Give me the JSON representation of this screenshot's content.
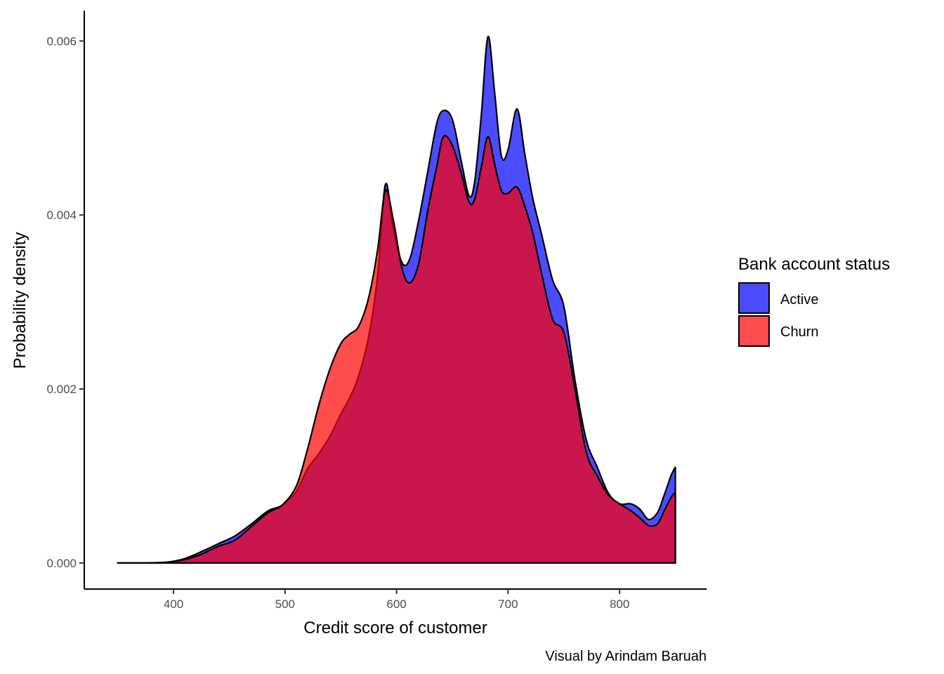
{
  "chart_data": {
    "type": "area",
    "xlabel": "Credit score of customer",
    "ylabel": "Probability density",
    "caption": "Visual by Arindam Baruah",
    "xlim": [
      320,
      878
    ],
    "ylim": [
      -0.0003,
      0.00635
    ],
    "x_ticks": [
      400,
      500,
      600,
      700,
      800
    ],
    "x_tick_labels": [
      "400",
      "500",
      "600",
      "700",
      "800"
    ],
    "y_ticks": [
      0,
      0.002,
      0.004,
      0.006
    ],
    "y_tick_labels": [
      "0.000",
      "0.002",
      "0.004",
      "0.006"
    ],
    "grid": false,
    "legend": {
      "title": "Bank account status",
      "position": "right",
      "entries": [
        "Active",
        "Churn"
      ]
    },
    "colors": {
      "Active": "#0000ff",
      "Churn": "#ff0000",
      "overlap": "#c51a50",
      "outline": "#000000"
    },
    "fill_opacity": 0.7,
    "x": [
      350,
      375,
      395,
      410,
      425,
      440,
      455,
      470,
      485,
      497,
      510,
      520,
      530,
      540,
      550,
      558,
      566,
      575,
      583,
      590,
      597,
      605,
      612,
      620,
      628,
      636,
      642,
      650,
      658,
      665,
      670,
      676,
      682,
      688,
      694,
      700,
      708,
      715,
      722,
      730,
      740,
      750,
      760,
      770,
      780,
      790,
      800,
      810,
      818,
      826,
      834,
      840,
      846,
      849,
      850
    ],
    "series": [
      {
        "name": "Active",
        "values": [
          0.0,
          0.0,
          1e-05,
          5e-05,
          0.00013,
          0.00022,
          0.00031,
          0.00045,
          0.0006,
          0.00066,
          0.00082,
          0.00108,
          0.00125,
          0.00145,
          0.00171,
          0.0019,
          0.00215,
          0.0026,
          0.0033,
          0.00435,
          0.00385,
          0.00345,
          0.0035,
          0.00395,
          0.0045,
          0.00505,
          0.0052,
          0.0051,
          0.00462,
          0.00422,
          0.00438,
          0.00515,
          0.00605,
          0.0054,
          0.00468,
          0.00475,
          0.00522,
          0.0047,
          0.0042,
          0.00378,
          0.00325,
          0.00295,
          0.0021,
          0.00142,
          0.0011,
          0.0008,
          0.00068,
          0.00068,
          0.00062,
          0.0005,
          0.00058,
          0.00078,
          0.001,
          0.00108,
          0.0011
        ]
      },
      {
        "name": "Churn",
        "values": [
          0.0,
          0.0,
          1e-05,
          4e-05,
          0.0001,
          0.00019,
          0.00026,
          0.00042,
          0.00058,
          0.00066,
          0.00088,
          0.0013,
          0.0018,
          0.00222,
          0.00252,
          0.00263,
          0.00272,
          0.00305,
          0.0036,
          0.00428,
          0.00395,
          0.00338,
          0.00322,
          0.00345,
          0.00405,
          0.00455,
          0.0049,
          0.0048,
          0.00448,
          0.00415,
          0.00418,
          0.00455,
          0.0049,
          0.00458,
          0.00428,
          0.00425,
          0.00432,
          0.0041,
          0.0038,
          0.00333,
          0.0028,
          0.00265,
          0.002,
          0.00128,
          0.001,
          0.00078,
          0.00068,
          0.0006,
          0.00052,
          0.00043,
          0.00045,
          0.0006,
          0.00075,
          0.0008,
          0.0008
        ]
      }
    ]
  }
}
